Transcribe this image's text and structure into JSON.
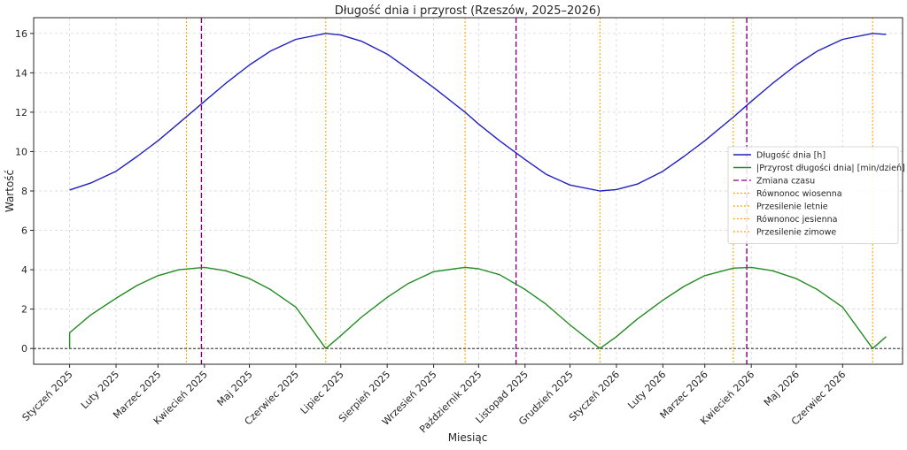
{
  "chart_data": {
    "type": "line",
    "title": "Długość dnia i przyrost (Rzeszów, 2025–2026)",
    "xlabel": "Miesiąc",
    "ylabel": "Wartość",
    "ylim": [
      -0.8,
      16.8
    ],
    "yticks": [
      0,
      2,
      4,
      6,
      8,
      10,
      12,
      14,
      16
    ],
    "x_range": [
      "2024-12-08",
      "2026-07-11"
    ],
    "x": [
      "2025-01-01",
      "2025-01-15",
      "2025-02-01",
      "2025-02-15",
      "2025-03-01",
      "2025-03-15",
      "2025-04-01",
      "2025-04-15",
      "2025-05-01",
      "2025-05-15",
      "2025-06-01",
      "2025-06-21",
      "2025-07-01",
      "2025-07-15",
      "2025-08-01",
      "2025-08-15",
      "2025-09-01",
      "2025-09-22",
      "2025-10-01",
      "2025-10-15",
      "2025-11-01",
      "2025-11-15",
      "2025-12-01",
      "2025-12-21",
      "2026-01-01",
      "2026-01-15",
      "2026-02-01",
      "2026-02-15",
      "2026-03-01",
      "2026-03-20",
      "2026-04-01",
      "2026-04-15",
      "2026-05-01",
      "2026-05-15",
      "2026-06-01",
      "2026-06-21",
      "2026-06-30"
    ],
    "xtick_labels": [
      {
        "date": "2025-01-01",
        "label": "Styczeń 2025"
      },
      {
        "date": "2025-02-01",
        "label": "Luty 2025"
      },
      {
        "date": "2025-03-01",
        "label": "Marzec 2025"
      },
      {
        "date": "2025-04-01",
        "label": "Kwiecień 2025"
      },
      {
        "date": "2025-05-01",
        "label": "Maj 2025"
      },
      {
        "date": "2025-06-01",
        "label": "Czerwiec 2025"
      },
      {
        "date": "2025-07-01",
        "label": "Lipiec 2025"
      },
      {
        "date": "2025-08-01",
        "label": "Sierpień 2025"
      },
      {
        "date": "2025-09-01",
        "label": "Wrzesień 2025"
      },
      {
        "date": "2025-10-01",
        "label": "Październik 2025"
      },
      {
        "date": "2025-11-01",
        "label": "Listopad 2025"
      },
      {
        "date": "2025-12-01",
        "label": "Grudzień 2025"
      },
      {
        "date": "2026-01-01",
        "label": "Styczeń 2026"
      },
      {
        "date": "2026-02-01",
        "label": "Luty 2026"
      },
      {
        "date": "2026-03-01",
        "label": "Marzec 2026"
      },
      {
        "date": "2026-04-01",
        "label": "Kwiecień 2026"
      },
      {
        "date": "2026-05-01",
        "label": "Maj 2026"
      },
      {
        "date": "2026-06-01",
        "label": "Czerwiec 2026"
      }
    ],
    "series": [
      {
        "name": "Długość dnia [h]",
        "color": "#1f1fbf",
        "style": "solid",
        "values": [
          8.05,
          8.4,
          9.0,
          9.75,
          10.55,
          11.45,
          12.55,
          13.45,
          14.4,
          15.1,
          15.7,
          16.0,
          15.92,
          15.6,
          14.95,
          14.2,
          13.25,
          12.0,
          11.4,
          10.55,
          9.6,
          8.85,
          8.3,
          8.0,
          8.07,
          8.35,
          9.0,
          9.75,
          10.55,
          11.75,
          12.55,
          13.45,
          14.4,
          15.1,
          15.7,
          16.0,
          15.95
        ]
      },
      {
        "name": "|Przyrost długości dnia| [min/dzień]",
        "color": "#228b22",
        "style": "solid",
        "values": [
          0.8,
          1.7,
          2.55,
          3.2,
          3.7,
          4.0,
          4.12,
          3.95,
          3.55,
          3.0,
          2.1,
          0.0,
          0.65,
          1.6,
          2.6,
          3.3,
          3.9,
          4.12,
          4.05,
          3.75,
          3.0,
          2.25,
          1.2,
          0.0,
          0.6,
          1.5,
          2.45,
          3.15,
          3.7,
          4.08,
          4.12,
          3.95,
          3.55,
          3.0,
          2.1,
          0.0,
          0.6
        ]
      }
    ],
    "vlines": [
      {
        "name": "Zmiana czasu",
        "color": "#800080",
        "style": "dashed",
        "dates": [
          "2025-03-30",
          "2025-10-26",
          "2026-03-29"
        ]
      },
      {
        "name": "Równonoc wiosenna",
        "color": "#ffa500",
        "style": "dotted",
        "dates": [
          "2025-03-20",
          "2026-03-20"
        ]
      },
      {
        "name": "Przesilenie letnie",
        "color": "#ffa500",
        "style": "dotted",
        "dates": [
          "2025-06-21",
          "2026-06-21"
        ]
      },
      {
        "name": "Równonoc jesienna",
        "color": "#ffa500",
        "style": "dotted",
        "dates": [
          "2025-09-22"
        ]
      },
      {
        "name": "Przesilenie zimowe",
        "color": "#ffa500",
        "style": "dotted",
        "dates": [
          "2025-12-21"
        ]
      }
    ],
    "hline": {
      "value": 0,
      "color": "#000000",
      "style": "dashed"
    },
    "grid": true,
    "legend": "center-right"
  }
}
